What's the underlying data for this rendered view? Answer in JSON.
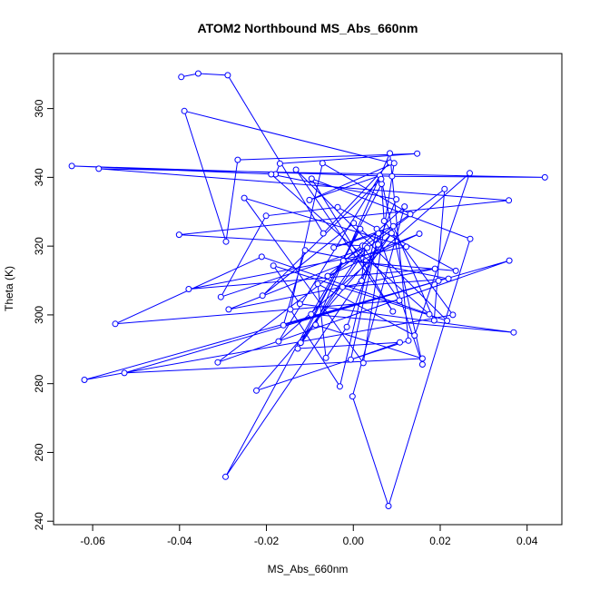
{
  "chart_data": {
    "type": "line",
    "title": "ATOM2 Northbound MS_Abs_660nm",
    "xlabel": "MS_Abs_660nm",
    "ylabel": "Theta (K)",
    "xlim": [
      -0.069,
      0.048
    ],
    "ylim": [
      239,
      376
    ],
    "x_ticks": [
      -0.06,
      -0.04,
      -0.02,
      0.0,
      0.02,
      0.04
    ],
    "x_tick_labels": [
      "-0.06",
      "-0.04",
      "-0.02",
      "0.00",
      "0.02",
      "0.04"
    ],
    "y_ticks": [
      240,
      260,
      280,
      300,
      320,
      340,
      360
    ],
    "y_tick_labels": [
      "240",
      "260",
      "280",
      "300",
      "320",
      "340",
      "360"
    ],
    "grid": false,
    "line_color": "#0000ff",
    "marker": "open-circle",
    "series": [
      {
        "points": [
          [
            -0.0396,
            369.2
          ],
          [
            -0.0357,
            370.2
          ],
          [
            -0.0289,
            369.7
          ],
          [
            -0.0069,
            323.7
          ],
          [
            0.0084,
            344.3
          ],
          [
            -0.0389,
            359.3
          ],
          [
            -0.0293,
            321.3
          ],
          [
            -0.0266,
            345.1
          ],
          [
            0.0147,
            346.9
          ],
          [
            -0.0169,
            344.0
          ],
          [
            -0.0179,
            340.9
          ],
          [
            -0.0648,
            343.3
          ],
          [
            0.0089,
            340.3
          ],
          [
            0.0441,
            340.0
          ],
          [
            -0.0586,
            342.5
          ],
          [
            0.0358,
            333.3
          ],
          [
            -0.0401,
            323.3
          ],
          [
            0.0021,
            320.1
          ],
          [
            0.0106,
            304.2
          ],
          [
            -0.0548,
            297.4
          ],
          [
            -0.0211,
            316.9
          ],
          [
            0.0175,
            300.2
          ],
          [
            -0.0189,
            340.9
          ],
          [
            0.0099,
            333.6
          ],
          [
            0.0019,
            309.9
          ],
          [
            0.0027,
            320.0
          ],
          [
            -0.0121,
            291.9
          ],
          [
            0.0065,
            338.1
          ],
          [
            0.0071,
            327.3
          ],
          [
            0.0229,
            300.0
          ],
          [
            -0.0619,
            281.1
          ],
          [
            0.0196,
            309.9
          ],
          [
            -0.0527,
            283.1
          ],
          [
            0.0159,
            287.3
          ],
          [
            -0.0087,
            297.1
          ],
          [
            0.0084,
            347.0
          ],
          [
            0.0127,
            292.5
          ],
          [
            -0.0223,
            278.0
          ],
          [
            0.0088,
            323.8
          ],
          [
            -0.0294,
            252.9
          ],
          [
            0.0016,
            325.0
          ],
          [
            -0.0097,
            300.2
          ],
          [
            0.0369,
            294.9
          ],
          [
            -0.0123,
            303.2
          ],
          [
            -0.0184,
            314.3
          ],
          [
            0.0216,
            298.3
          ],
          [
            -0.0132,
            342.2
          ],
          [
            0.0091,
            301.0
          ],
          [
            -0.0096,
            339.6
          ],
          [
            0.0269,
            322.1
          ],
          [
            0.0081,
            244.4
          ],
          [
            -0.0002,
            276.3
          ],
          [
            0.0118,
            331.5
          ],
          [
            -0.0059,
            311.3
          ],
          [
            0.0152,
            323.6
          ],
          [
            -0.0287,
            301.6
          ],
          [
            0.0188,
            313.4
          ],
          [
            -0.0379,
            307.5
          ],
          [
            0.0122,
            319.8
          ],
          [
            -0.0251,
            334.0
          ],
          [
            0.0023,
            286.0
          ],
          [
            0.0094,
            344.1
          ],
          [
            -0.0101,
            333.4
          ],
          [
            0.0061,
            340.5
          ],
          [
            -0.0172,
            292.3
          ],
          [
            0.0268,
            341.2
          ],
          [
            0.0141,
            294.0
          ],
          [
            -0.0082,
            309.0
          ],
          [
            -0.0063,
            287.5
          ],
          [
            -0.0015,
            296.5
          ],
          [
            0.0057,
            320.5
          ],
          [
            0.0001,
            326.7
          ],
          [
            -0.0209,
            305.6
          ],
          [
            0.0064,
            339.5
          ],
          [
            0.0159,
            285.6
          ],
          [
            0.0054,
            325.0
          ],
          [
            -0.0031,
            279.2
          ],
          [
            -0.0145,
            301.6
          ],
          [
            -0.0071,
            344.1
          ],
          [
            0.0131,
            329.3
          ],
          [
            -0.0023,
            315.7
          ],
          [
            0.0236,
            312.8
          ],
          [
            -0.0036,
            331.3
          ],
          [
            -0.0201,
            328.8
          ],
          [
            -0.0305,
            305.2
          ],
          [
            0.0032,
            319.5
          ],
          [
            -0.0128,
            290.2
          ],
          [
            0.0107,
            292.0
          ],
          [
            -0.0006,
            287.0
          ],
          [
            0.0058,
            323.7
          ],
          [
            -0.0045,
            319.6
          ],
          [
            0.0092,
            325.8
          ],
          [
            0.0186,
            298.4
          ],
          [
            0.021,
            336.6
          ],
          [
            -0.0312,
            286.2
          ],
          [
            0.0359,
            315.8
          ],
          [
            -0.0161,
            297.0
          ],
          [
            -0.0111,
            318.8
          ],
          [
            0.0219,
            310.5
          ],
          [
            -0.0025,
            308.1
          ]
        ]
      }
    ]
  }
}
